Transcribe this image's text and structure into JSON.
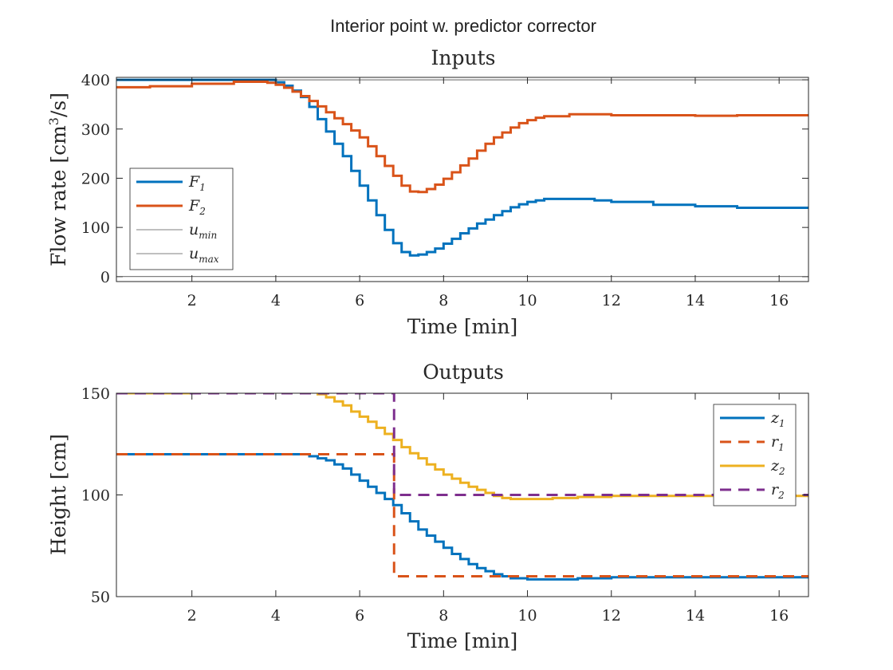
{
  "figure_title": "Interior point w. predictor corrector",
  "colors": {
    "blue": "#0072BD",
    "orange": "#D95319",
    "yellow": "#EDB120",
    "purple": "#7E2F8E",
    "black": "#000000"
  },
  "chart_data": [
    {
      "type": "line",
      "title": "Inputs",
      "xlabel": "Time [min]",
      "ylabel": "Flow rate [cm³/s]",
      "ylabel_base": "Flow rate [cm",
      "ylabel_sup": "3",
      "ylabel_tail": "/s]",
      "xlim": [
        0.2,
        16.7
      ],
      "ylim": [
        -10,
        405
      ],
      "xticks": [
        2,
        4,
        6,
        8,
        10,
        12,
        14,
        16
      ],
      "yticks": [
        0,
        100,
        200,
        300,
        400
      ],
      "legend_position": "left",
      "grid": false,
      "series": [
        {
          "name": "F1",
          "label_main": "F",
          "label_sub": "1",
          "color": "blue",
          "style": "stair",
          "width": 3,
          "x": [
            0.2,
            3.8,
            4.0,
            4.2,
            4.4,
            4.6,
            4.8,
            5.0,
            5.2,
            5.4,
            5.6,
            5.8,
            6.0,
            6.2,
            6.4,
            6.6,
            6.8,
            7.0,
            7.2,
            7.4,
            7.6,
            7.8,
            8.0,
            8.2,
            8.4,
            8.6,
            8.8,
            9.0,
            9.2,
            9.4,
            9.6,
            9.8,
            10.0,
            10.2,
            10.4,
            11.0,
            11.6,
            12.0,
            13.0,
            14.0,
            15.0,
            16.7
          ],
          "y": [
            400,
            400,
            395,
            388,
            378,
            365,
            345,
            320,
            295,
            270,
            245,
            215,
            185,
            155,
            125,
            95,
            68,
            50,
            43,
            45,
            50,
            57,
            67,
            77,
            88,
            98,
            108,
            116,
            125,
            133,
            141,
            147,
            152,
            155,
            158,
            158,
            155,
            152,
            146,
            143,
            140,
            140
          ]
        },
        {
          "name": "F2",
          "label_main": "F",
          "label_sub": "2",
          "color": "orange",
          "style": "stair",
          "width": 3,
          "x": [
            0.2,
            1.0,
            2.0,
            3.0,
            3.4,
            3.8,
            4.0,
            4.2,
            4.4,
            4.6,
            4.8,
            5.0,
            5.2,
            5.4,
            5.6,
            5.8,
            6.0,
            6.2,
            6.4,
            6.6,
            6.8,
            7.0,
            7.2,
            7.4,
            7.6,
            7.8,
            8.0,
            8.2,
            8.4,
            8.6,
            8.8,
            9.0,
            9.2,
            9.4,
            9.6,
            9.8,
            10.0,
            10.2,
            10.4,
            11.0,
            12.0,
            14.0,
            15.0,
            16.7
          ],
          "y": [
            385,
            387,
            392,
            396,
            396,
            394,
            390,
            384,
            376,
            367,
            357,
            346,
            334,
            322,
            310,
            297,
            283,
            265,
            245,
            225,
            205,
            185,
            173,
            172,
            178,
            187,
            199,
            212,
            226,
            240,
            256,
            270,
            283,
            293,
            303,
            312,
            318,
            323,
            326,
            330,
            328,
            327,
            328,
            328
          ]
        },
        {
          "name": "u_min",
          "label_main": "u",
          "label_sub": "min",
          "color": "black",
          "style": "line",
          "width": 0.6,
          "x": [
            0.2,
            16.7
          ],
          "y": [
            0,
            0
          ]
        },
        {
          "name": "u_max",
          "label_main": "u",
          "label_sub": "max",
          "color": "black",
          "style": "line",
          "width": 0.6,
          "x": [
            0.2,
            16.7
          ],
          "y": [
            400,
            400
          ]
        }
      ]
    },
    {
      "type": "line",
      "title": "Outputs",
      "xlabel": "Time [min]",
      "ylabel": "Height [cm]",
      "xlim": [
        0.2,
        16.7
      ],
      "ylim": [
        50,
        150
      ],
      "xticks": [
        2,
        4,
        6,
        8,
        10,
        12,
        14,
        16
      ],
      "yticks": [
        50,
        100,
        150
      ],
      "legend_position": "top-right",
      "grid": false,
      "series": [
        {
          "name": "z1",
          "label_main": "z",
          "label_sub": "1",
          "color": "blue",
          "style": "stair",
          "width": 3,
          "x": [
            0.2,
            4.4,
            4.8,
            5.0,
            5.2,
            5.4,
            5.6,
            5.8,
            6.0,
            6.2,
            6.4,
            6.6,
            6.8,
            7.0,
            7.2,
            7.4,
            7.6,
            7.8,
            8.0,
            8.2,
            8.4,
            8.6,
            8.8,
            9.0,
            9.2,
            9.4,
            9.6,
            10.0,
            10.6,
            11.2,
            12.0,
            16.7
          ],
          "y": [
            120,
            120,
            119,
            118,
            117,
            115,
            113,
            110,
            107,
            104,
            101,
            98,
            95,
            91,
            87,
            83,
            80,
            77,
            74,
            71,
            68.5,
            66,
            64,
            62.5,
            61,
            60,
            59,
            58.5,
            58.5,
            59,
            59.5,
            60
          ]
        },
        {
          "name": "r1",
          "label_main": "r",
          "label_sub": "1",
          "color": "orange",
          "style": "dash",
          "width": 3,
          "x": [
            0.2,
            6.82,
            6.82,
            16.7
          ],
          "y": [
            120,
            120,
            60,
            60
          ]
        },
        {
          "name": "z2",
          "label_main": "z",
          "label_sub": "2",
          "color": "yellow",
          "style": "stair",
          "width": 3,
          "x": [
            0.2,
            2.0,
            3.0,
            3.4,
            4.2,
            4.8,
            5.0,
            5.2,
            5.4,
            5.6,
            5.8,
            6.0,
            6.2,
            6.4,
            6.6,
            6.8,
            7.0,
            7.2,
            7.4,
            7.6,
            7.8,
            8.0,
            8.2,
            8.4,
            8.6,
            8.8,
            9.0,
            9.2,
            9.4,
            9.6,
            10.0,
            10.6,
            11.2,
            12.0,
            16.7
          ],
          "y": [
            150,
            150.5,
            151,
            151.5,
            151.5,
            151,
            149.5,
            148,
            146,
            144,
            141,
            138.5,
            136,
            133,
            130,
            127,
            123.5,
            120.5,
            118,
            115,
            112.5,
            110,
            108,
            106,
            104,
            102.5,
            101,
            99.5,
            98.5,
            98,
            98,
            98.5,
            99,
            99.5,
            100
          ]
        },
        {
          "name": "r2",
          "label_main": "r",
          "label_sub": "2",
          "color": "purple",
          "style": "dash",
          "width": 3,
          "x": [
            0.2,
            6.82,
            6.82,
            16.7
          ],
          "y": [
            150,
            150,
            100,
            100
          ]
        }
      ]
    }
  ]
}
